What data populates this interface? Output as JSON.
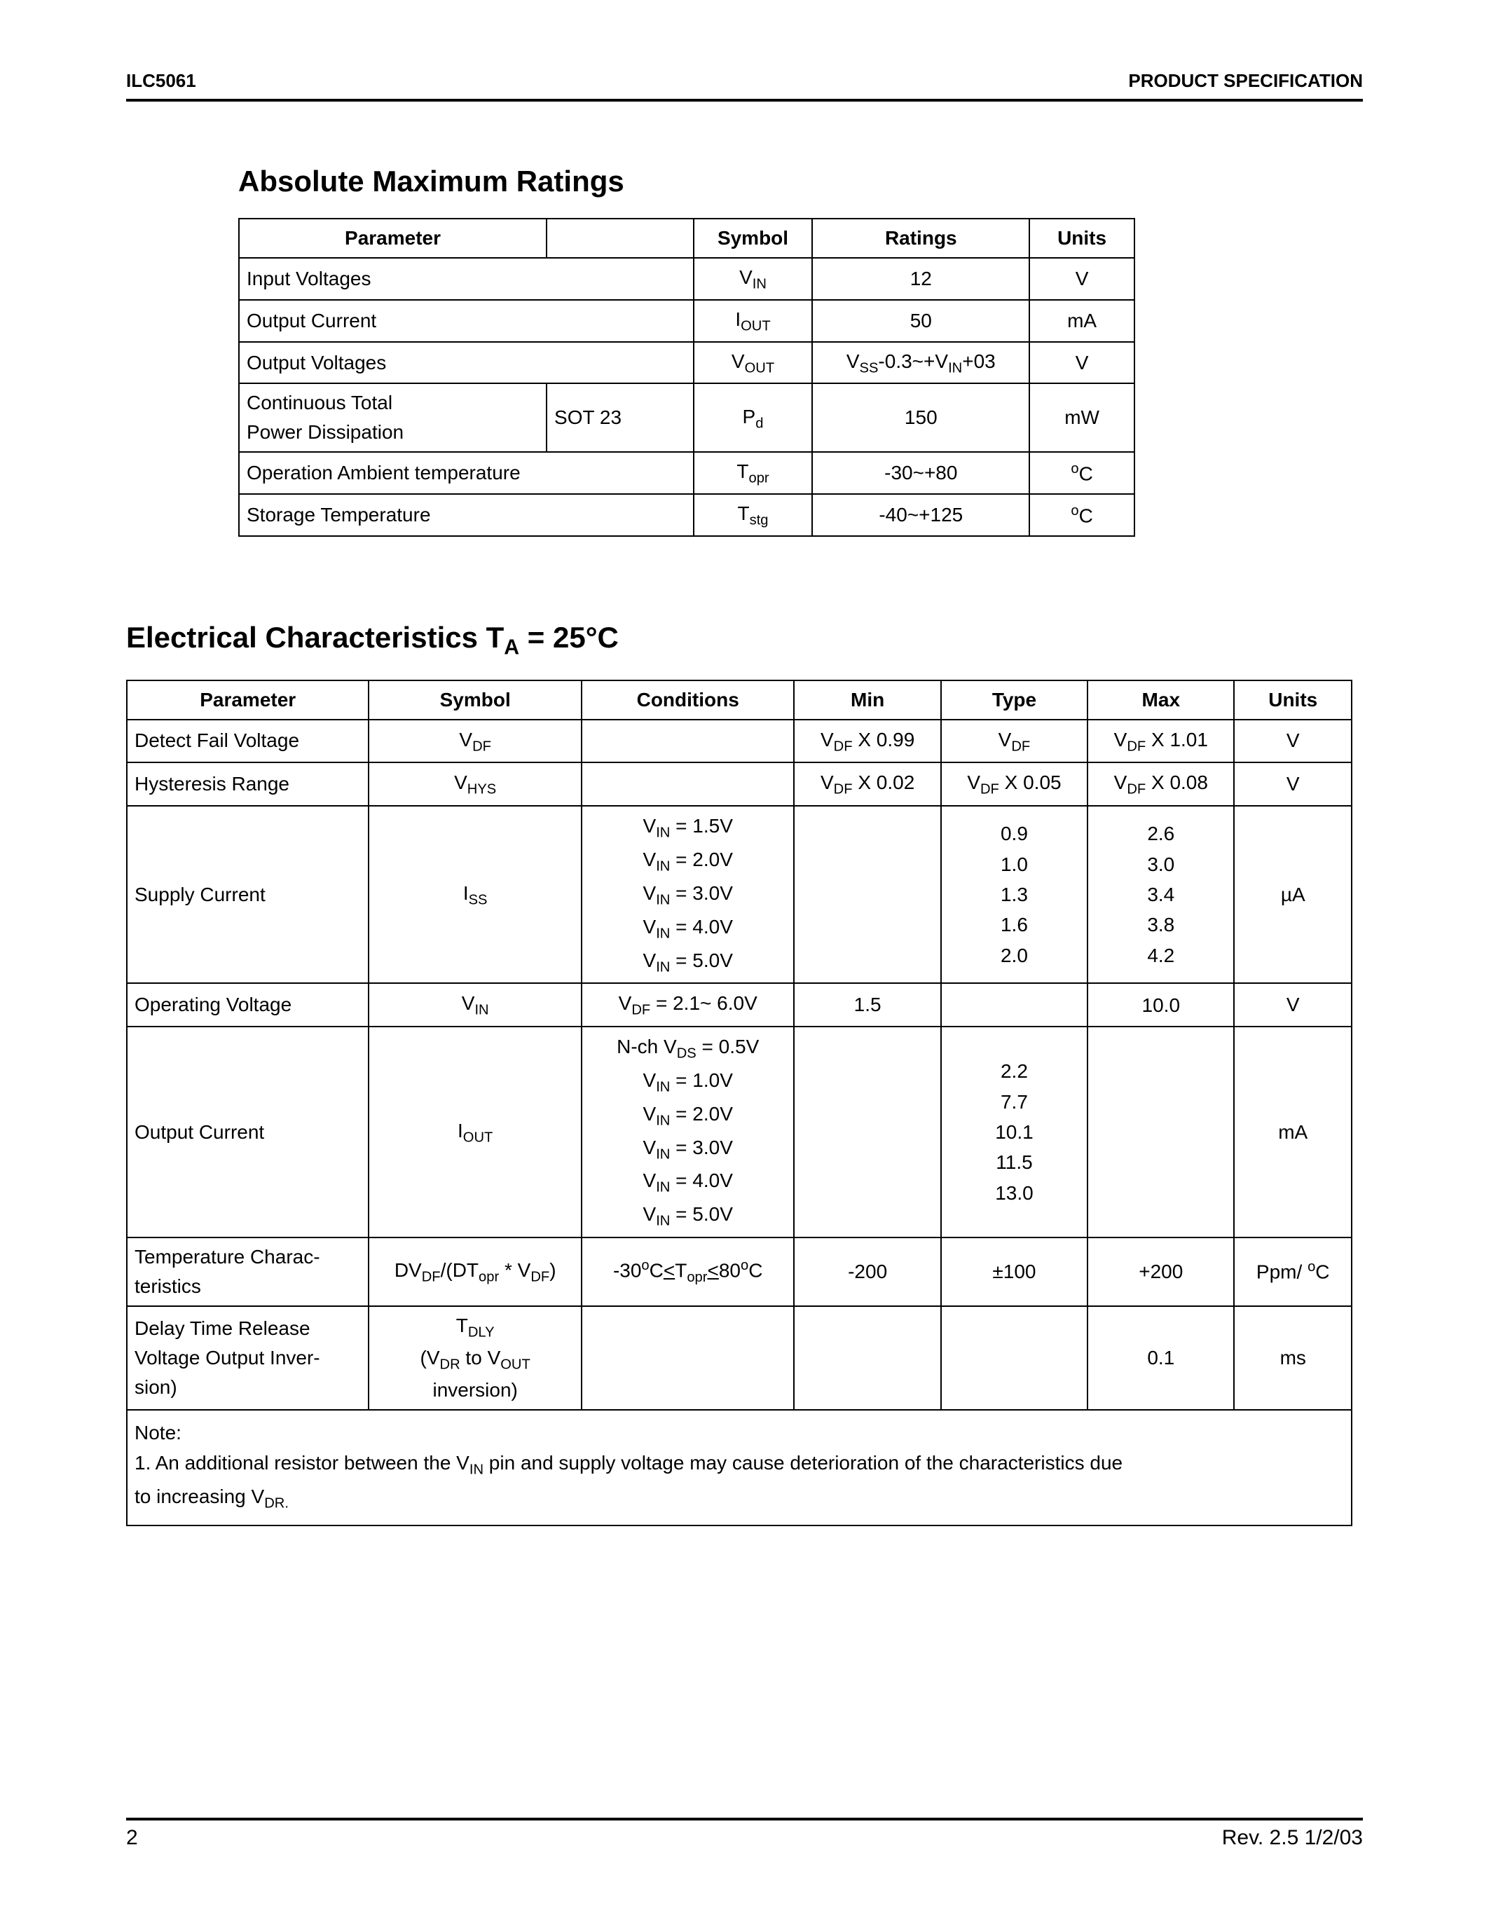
{
  "header": {
    "left": "ILC5061",
    "right": "PRODUCT SPECIFICATION"
  },
  "section1": {
    "title": "Absolute Maximum Ratings",
    "columns": [
      "Parameter",
      "",
      "Symbol",
      "Ratings",
      "Units"
    ],
    "rows": [
      {
        "param": "Input Voltages",
        "pkg": "",
        "symbol_html": "V<sub>IN</sub>",
        "ratings_html": "12",
        "units_html": "V",
        "span_pkg": true
      },
      {
        "param": "Output Current",
        "pkg": "",
        "symbol_html": "I<sub>OUT</sub>",
        "ratings_html": "50",
        "units_html": "mA",
        "span_pkg": true
      },
      {
        "param": "Output Voltages",
        "pkg": "",
        "symbol_html": "V<sub>OUT</sub>",
        "ratings_html": "V<sub>SS</sub>-0.3~+V<sub>IN</sub>+03",
        "units_html": "V",
        "span_pkg": true
      },
      {
        "param": "Continuous Total<br>Power Dissipation",
        "pkg": "SOT 23",
        "symbol_html": "P<sub>d</sub>",
        "ratings_html": "150",
        "units_html": "mW",
        "span_pkg": false
      },
      {
        "param": "Operation Ambient temperature",
        "pkg": "",
        "symbol_html": "T<sub>opr</sub>",
        "ratings_html": "-30~+80",
        "units_html": "<sup>o</sup>C",
        "span_pkg": true
      },
      {
        "param": "Storage Temperature",
        "pkg": "",
        "symbol_html": "T<sub>stg</sub>",
        "ratings_html": "-40~+125",
        "units_html": "<sup>o</sup>C",
        "span_pkg": true
      }
    ]
  },
  "section2": {
    "title_html": "Electrical Characteristics T<sub>A</sub> = 25°C",
    "columns": [
      "Parameter",
      "Symbol",
      "Conditions",
      "Min",
      "Type",
      "Max",
      "Units"
    ],
    "rows": [
      {
        "param_html": "Detect Fail Voltage",
        "symbol_html": "V<sub>DF</sub>",
        "cond_html": "",
        "min_html": "V<sub>DF</sub> X 0.99",
        "typ_html": "V<sub>DF</sub>",
        "max_html": "V<sub>DF</sub> X 1.01",
        "units_html": "V"
      },
      {
        "param_html": "Hysteresis Range",
        "symbol_html": "V<sub>HYS</sub>",
        "cond_html": "",
        "min_html": "V<sub>DF</sub> X 0.02",
        "typ_html": "V<sub>DF</sub> X 0.05",
        "max_html": "V<sub>DF</sub> X 0.08",
        "units_html": "V"
      },
      {
        "param_html": "Supply Current",
        "symbol_html": "I<sub>SS</sub>",
        "cond_html": "V<sub>IN</sub> = 1.5V<br>V<sub>IN</sub> = 2.0V<br>V<sub>IN</sub> = 3.0V<br>V<sub>IN</sub> = 4.0V<br>V<sub>IN</sub> = 5.0V",
        "min_html": "",
        "typ_html": "0.9<br>1.0<br>1.3<br>1.6<br>2.0",
        "max_html": "2.6<br>3.0<br>3.4<br>3.8<br>4.2",
        "units_html": "µA"
      },
      {
        "param_html": "Operating Voltage",
        "symbol_html": "V<sub>IN</sub>",
        "cond_html": "V<sub>DF</sub> = 2.1~ 6.0V",
        "min_html": "1.5",
        "typ_html": "",
        "max_html": "10.0",
        "units_html": "V"
      },
      {
        "param_html": "Output Current",
        "symbol_html": "I<sub>OUT</sub>",
        "cond_html": "N-ch V<sub>DS</sub> = 0.5V<br>V<sub>IN</sub> = 1.0V<br>V<sub>IN</sub> = 2.0V<br>V<sub>IN</sub> = 3.0V<br>V<sub>IN</sub> = 4.0V<br>V<sub>IN</sub> = 5.0V",
        "min_html": "",
        "typ_html": "2.2<br>7.7<br>10.1<br>11.5<br>13.0",
        "max_html": "",
        "units_html": "mA"
      },
      {
        "param_html": "Temperature Charac-<br>teristics",
        "symbol_html": "DV<sub>DF</sub>/(DT<sub>opr</sub> * V<sub>DF</sub>)",
        "cond_html": "-30<sup>o</sup>C<u>&lt;</u>T<sub>opr</sub><u>&lt;</u>80<sup>o</sup>C",
        "min_html": "-200",
        "typ_html": "±100",
        "max_html": "+200",
        "units_html": "Ppm/ <sup>o</sup>C"
      },
      {
        "param_html": "Delay Time Release<br>Voltage  Output Inver-<br>sion)",
        "symbol_html": "T<sub>DLY</sub><br>(V<sub>DR</sub> to V<sub>OUT</sub><br>inversion)",
        "cond_html": "",
        "min_html": "",
        "typ_html": "",
        "max_html": "0.1",
        "units_html": "ms"
      }
    ],
    "note_html": "Note:<br>1. An additional resistor between the V<sub>IN</sub> pin and supply voltage may cause deterioration of the characteristics due<br>to increasing V<sub>DR.</sub>"
  },
  "footer": {
    "page": "2",
    "rev": "Rev. 2.5 1/2/03"
  }
}
